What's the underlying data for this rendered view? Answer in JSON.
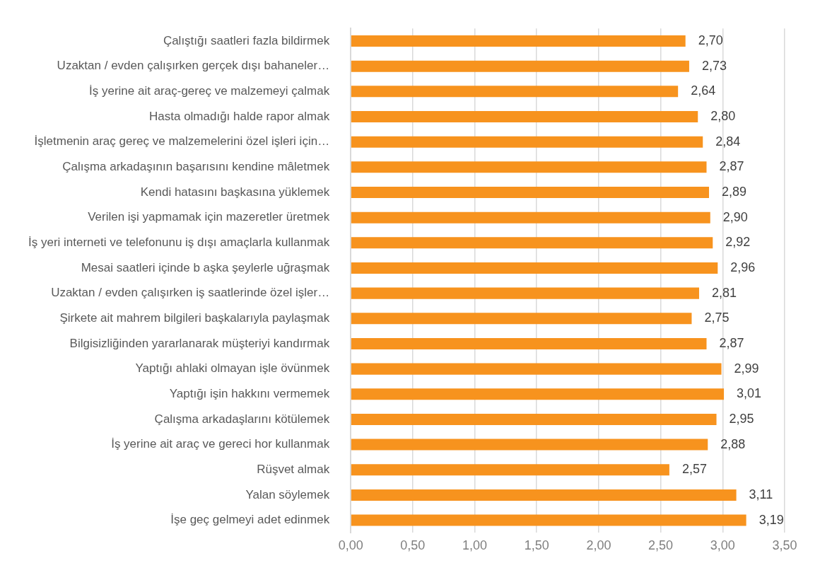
{
  "chart_data": {
    "type": "bar",
    "orientation": "horizontal",
    "categories": [
      "Çalıştığı saatleri fazla bildirmek",
      "Uzaktan / evden çalışırken gerçek dışı bahaneler…",
      "İş yerine ait araç-gereç ve malzemeyi çalmak",
      "Hasta olmadığı halde rapor almak",
      "İşletmenin araç gereç ve malzemelerini özel işleri için…",
      "Çalışma arkadaşının başarısını kendine mâletmek",
      "Kendi hatasını başkasına yüklemek",
      "Verilen işi yapmamak için mazeretler üretmek",
      "İş yeri interneti ve telefonunu iş dışı amaçlarla kullanmak",
      "Mesai saatleri içinde b aşka şeylerle uğraşmak",
      "Uzaktan / evden çalışırken iş saatlerinde özel işler…",
      "Şirkete ait mahrem bilgileri başkalarıyla paylaşmak",
      "Bilgisizliğinden yararlanarak müşteriyi kandırmak",
      "Yaptığı ahlaki olmayan işle övünmek",
      "Yaptığı işin hakkını vermemek",
      "Çalışma arkadaşlarını kötülemek",
      "İş yerine ait araç ve gereci hor kullanmak",
      "Rüşvet almak",
      "Yalan söylemek",
      "İşe geç gelmeyi adet edinmek"
    ],
    "values": [
      2.7,
      2.73,
      2.64,
      2.8,
      2.84,
      2.87,
      2.89,
      2.9,
      2.92,
      2.96,
      2.81,
      2.75,
      2.87,
      2.99,
      3.01,
      2.95,
      2.88,
      2.57,
      3.11,
      3.19
    ],
    "value_labels": [
      "2,70",
      "2,73",
      "2,64",
      "2,80",
      "2,84",
      "2,87",
      "2,89",
      "2,90",
      "2,92",
      "2,96",
      "2,81",
      "2,75",
      "2,87",
      "2,99",
      "3,01",
      "2,95",
      "2,88",
      "2,57",
      "3,11",
      "3,19"
    ],
    "color": "#f7931e",
    "xlim": [
      0,
      3.5
    ],
    "xticks": [
      {
        "value": 0,
        "label": "0,00"
      },
      {
        "value": 0.5,
        "label": "0,50"
      },
      {
        "value": 1,
        "label": "1,00"
      },
      {
        "value": 1.5,
        "label": "1,50"
      },
      {
        "value": 2,
        "label": "2,00"
      },
      {
        "value": 2.5,
        "label": "2,50"
      },
      {
        "value": 3,
        "label": "3,00"
      },
      {
        "value": 3.5,
        "label": "3,50"
      }
    ],
    "grid": "x",
    "legend": false
  }
}
